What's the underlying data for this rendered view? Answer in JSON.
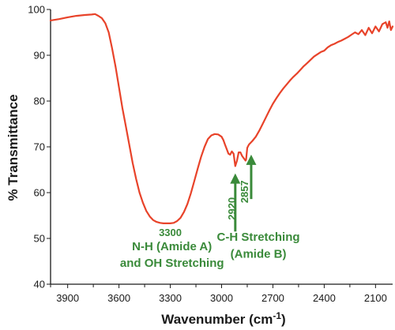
{
  "chart_data": {
    "type": "line",
    "title": "",
    "xlabel_main": "Wavenumber (cm",
    "xlabel_sup": "-1",
    "xlabel_close": ")",
    "ylabel": "% Transmittance",
    "xlim": [
      4000,
      2000
    ],
    "x_reversed": true,
    "ylim": [
      40,
      100
    ],
    "grid": false,
    "x_ticks": [
      3900,
      3600,
      3300,
      3000,
      2700,
      2400,
      2100
    ],
    "x_tick_labels": [
      "3900",
      "3600",
      "3300",
      "3000",
      "2700",
      "2400",
      "2100"
    ],
    "y_ticks": [
      40,
      50,
      60,
      70,
      80,
      90,
      100
    ],
    "y_tick_labels": [
      "40",
      "50",
      "60",
      "70",
      "80",
      "90",
      "100"
    ],
    "series": [
      {
        "color": "#e8432a",
        "x": [
          4000,
          3950,
          3900,
          3850,
          3800,
          3760,
          3740,
          3720,
          3700,
          3680,
          3660,
          3640,
          3620,
          3600,
          3580,
          3560,
          3540,
          3520,
          3500,
          3480,
          3460,
          3440,
          3420,
          3400,
          3380,
          3360,
          3340,
          3320,
          3300,
          3280,
          3260,
          3240,
          3220,
          3200,
          3180,
          3160,
          3140,
          3120,
          3100,
          3080,
          3060,
          3040,
          3020,
          3000,
          2990,
          2980,
          2970,
          2960,
          2950,
          2940,
          2930,
          2920,
          2910,
          2900,
          2890,
          2880,
          2870,
          2860,
          2857,
          2850,
          2840,
          2820,
          2800,
          2780,
          2760,
          2740,
          2720,
          2700,
          2680,
          2660,
          2640,
          2620,
          2600,
          2580,
          2560,
          2540,
          2520,
          2500,
          2480,
          2460,
          2440,
          2420,
          2400,
          2380,
          2360,
          2340,
          2320,
          2300,
          2280,
          2260,
          2240,
          2220,
          2200,
          2180,
          2160,
          2140,
          2120,
          2100,
          2080,
          2060,
          2040,
          2030,
          2020,
          2010,
          2000
        ],
        "y": [
          97.6,
          97.9,
          98.3,
          98.6,
          98.8,
          98.9,
          99.0,
          98.6,
          98.1,
          97.0,
          95.0,
          91.5,
          87.5,
          83.0,
          78.5,
          74.5,
          70.5,
          66.5,
          63.0,
          60.0,
          57.8,
          56.0,
          54.8,
          54.0,
          53.6,
          53.4,
          53.3,
          53.3,
          53.3,
          53.4,
          53.8,
          54.5,
          55.8,
          57.5,
          59.8,
          62.5,
          65.2,
          67.8,
          70.0,
          71.7,
          72.5,
          72.8,
          72.7,
          72.2,
          71.5,
          70.5,
          69.5,
          68.5,
          68.3,
          69.0,
          68.5,
          65.8,
          67.0,
          68.8,
          68.8,
          68.0,
          67.5,
          67.0,
          67.2,
          69.8,
          70.5,
          71.3,
          72.2,
          73.5,
          75.0,
          76.5,
          78.0,
          79.4,
          80.6,
          81.7,
          82.7,
          83.6,
          84.5,
          85.3,
          86.0,
          86.8,
          87.6,
          88.3,
          89.0,
          89.7,
          90.2,
          90.7,
          91.0,
          91.7,
          92.2,
          92.5,
          92.9,
          93.2,
          93.6,
          94.0,
          94.5,
          95.0,
          94.6,
          95.5,
          94.4,
          96.0,
          94.8,
          96.3,
          95.2,
          96.8,
          97.2,
          96.0,
          97.4,
          95.5,
          96.3
        ]
      }
    ],
    "annotations": [
      {
        "id": "peak-3300-label",
        "text": "3300",
        "x": 3300,
        "y": 50.5
      },
      {
        "id": "nh-line1",
        "text": "N-H (Amide A)",
        "x": 3290,
        "y": 47.4
      },
      {
        "id": "nh-line2",
        "text": "and OH Stretching",
        "x": 3290,
        "y": 43.8
      },
      {
        "id": "ch-line1",
        "text": "C-H Stretching",
        "x": 2785,
        "y": 49.5
      },
      {
        "id": "ch-line2",
        "text": "(Amide B)",
        "x": 2785,
        "y": 45.8
      },
      {
        "id": "peak-2920-label",
        "text": "2920",
        "x": 2920,
        "y": 56.5,
        "rotate": true
      },
      {
        "id": "peak-2857-label",
        "text": "2857",
        "x": 2845,
        "y": 60.2,
        "rotate": true
      }
    ],
    "arrows": [
      {
        "id": "arrow-2920",
        "x": 2920,
        "from_y": 51.5,
        "to_y": 64.2
      },
      {
        "id": "arrow-2857",
        "x": 2827,
        "from_y": 58.6,
        "to_y": 68.3
      }
    ],
    "colors": {
      "line": "#e8432a",
      "annotation": "#3a8a3a",
      "axis": "#1a1a1a"
    }
  }
}
